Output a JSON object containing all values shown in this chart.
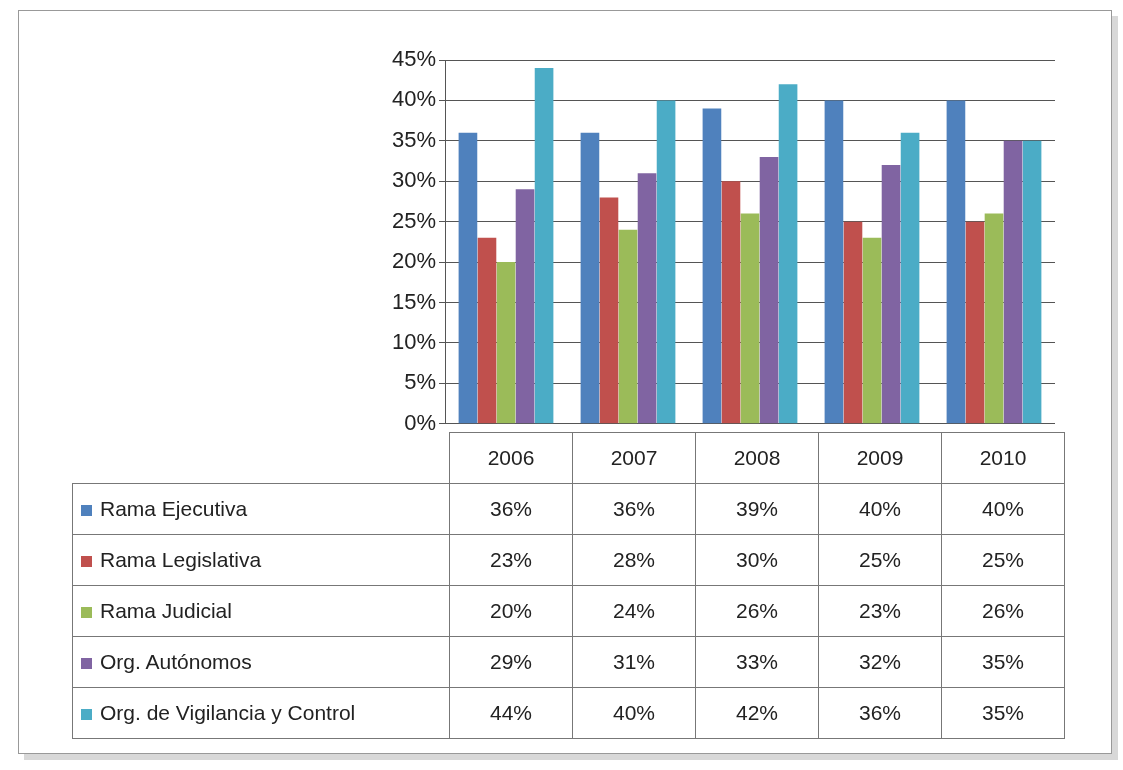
{
  "chart_data": {
    "type": "bar",
    "categories": [
      "2006",
      "2007",
      "2008",
      "2009",
      "2010"
    ],
    "series": [
      {
        "name": "Rama Ejecutiva",
        "color": "#4f81bd",
        "values": [
          36,
          36,
          39,
          40,
          40
        ],
        "value_labels": [
          "36%",
          "36%",
          "39%",
          "40%",
          "40%"
        ]
      },
      {
        "name": "Rama Legislativa",
        "color": "#c0504d",
        "values": [
          23,
          28,
          30,
          25,
          25
        ],
        "value_labels": [
          "23%",
          "28%",
          "30%",
          "25%",
          "25%"
        ]
      },
      {
        "name": "Rama Judicial",
        "color": "#9bbb59",
        "values": [
          20,
          24,
          26,
          23,
          26
        ],
        "value_labels": [
          "20%",
          "24%",
          "26%",
          "23%",
          "26%"
        ]
      },
      {
        "name": "Org. Autónomos",
        "color": "#8064a2",
        "values": [
          29,
          31,
          33,
          32,
          35
        ],
        "value_labels": [
          "29%",
          "31%",
          "33%",
          "32%",
          "35%"
        ]
      },
      {
        "name": "Org. de Vigilancia y Control",
        "color": "#4bacc6",
        "values": [
          44,
          40,
          42,
          36,
          35
        ],
        "value_labels": [
          "44%",
          "40%",
          "42%",
          "36%",
          "35%"
        ]
      }
    ],
    "ylim": [
      0,
      45
    ],
    "yticks": [
      {
        "value": 0,
        "label": "0%"
      },
      {
        "value": 5,
        "label": "5%"
      },
      {
        "value": 10,
        "label": "10%"
      },
      {
        "value": 15,
        "label": "15%"
      },
      {
        "value": 20,
        "label": "20%"
      },
      {
        "value": 25,
        "label": "25%"
      },
      {
        "value": 30,
        "label": "30%"
      },
      {
        "value": 35,
        "label": "35%"
      },
      {
        "value": 40,
        "label": "40%"
      },
      {
        "value": 45,
        "label": "45%"
      }
    ],
    "grid": "y",
    "legend": "bottom"
  }
}
